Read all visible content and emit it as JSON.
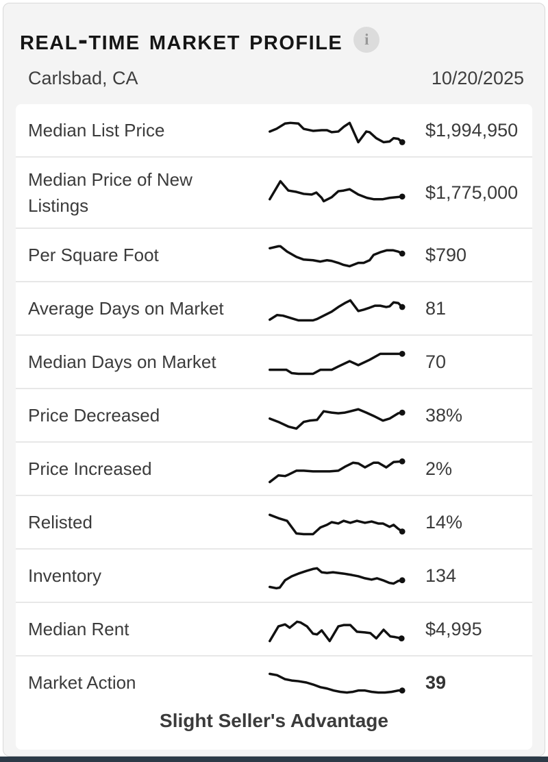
{
  "header": {
    "title": "Real-Time Market Profile",
    "info_icon": "i",
    "location": "Carlsbad, CA",
    "date": "10/20/2025"
  },
  "theme": {
    "sparkline_color": "#111111",
    "card_background": "#f4f4f4",
    "row_background": "#ffffff",
    "text_color": "#3b3b3b",
    "bottom_strip_color": "#2c3a47",
    "info_circle_color": "#dcdcdc"
  },
  "rows": [
    {
      "label": "Median List Price",
      "value": "$1,994,950",
      "bold": false,
      "spark": [
        [
          7,
          27
        ],
        [
          17,
          23
        ],
        [
          30,
          15
        ],
        [
          38,
          14
        ],
        [
          50,
          15
        ],
        [
          58,
          23
        ],
        [
          72,
          26
        ],
        [
          85,
          25
        ],
        [
          93,
          25
        ],
        [
          100,
          28
        ],
        [
          110,
          27
        ],
        [
          118,
          20
        ],
        [
          127,
          14
        ],
        [
          140,
          43
        ],
        [
          152,
          27
        ],
        [
          157,
          28
        ],
        [
          167,
          37
        ],
        [
          178,
          43
        ],
        [
          187,
          42
        ],
        [
          193,
          37
        ],
        [
          200,
          38
        ],
        [
          206,
          43
        ]
      ]
    },
    {
      "label": "Median Price of New Listings",
      "value": "$1,775,000",
      "bold": false,
      "spark": [
        [
          7,
          35
        ],
        [
          23,
          8
        ],
        [
          35,
          22
        ],
        [
          47,
          24
        ],
        [
          58,
          27
        ],
        [
          70,
          28
        ],
        [
          77,
          25
        ],
        [
          85,
          33
        ],
        [
          88,
          38
        ],
        [
          100,
          32
        ],
        [
          110,
          23
        ],
        [
          118,
          22
        ],
        [
          127,
          20
        ],
        [
          140,
          28
        ],
        [
          153,
          33
        ],
        [
          163,
          35
        ],
        [
          177,
          35
        ],
        [
          187,
          33
        ],
        [
          197,
          32
        ],
        [
          206,
          31
        ]
      ]
    },
    {
      "label": "Per Square Foot",
      "value": "$790",
      "bold": false,
      "spark": [
        [
          7,
          15
        ],
        [
          20,
          12
        ],
        [
          23,
          12
        ],
        [
          33,
          20
        ],
        [
          47,
          28
        ],
        [
          58,
          32
        ],
        [
          72,
          33
        ],
        [
          83,
          35
        ],
        [
          93,
          33
        ],
        [
          100,
          34
        ],
        [
          110,
          37
        ],
        [
          118,
          40
        ],
        [
          127,
          42
        ],
        [
          140,
          37
        ],
        [
          148,
          37
        ],
        [
          157,
          33
        ],
        [
          163,
          25
        ],
        [
          173,
          21
        ],
        [
          183,
          18
        ],
        [
          192,
          18
        ],
        [
          200,
          20
        ],
        [
          206,
          23
        ]
      ]
    },
    {
      "label": "Average Days on Market",
      "value": "81",
      "bold": false,
      "spark": [
        [
          7,
          42
        ],
        [
          18,
          35
        ],
        [
          27,
          36
        ],
        [
          40,
          40
        ],
        [
          50,
          43
        ],
        [
          62,
          43
        ],
        [
          72,
          43
        ],
        [
          78,
          41
        ],
        [
          90,
          35
        ],
        [
          100,
          30
        ],
        [
          110,
          23
        ],
        [
          120,
          17
        ],
        [
          128,
          13
        ],
        [
          140,
          29
        ],
        [
          148,
          27
        ],
        [
          157,
          24
        ],
        [
          165,
          21
        ],
        [
          173,
          21
        ],
        [
          182,
          23
        ],
        [
          187,
          22
        ],
        [
          193,
          16
        ],
        [
          200,
          17
        ],
        [
          206,
          23
        ]
      ]
    },
    {
      "label": "Median Days on Market",
      "value": "70",
      "bold": false,
      "spark": [
        [
          7,
          37
        ],
        [
          32,
          37
        ],
        [
          40,
          42
        ],
        [
          50,
          43
        ],
        [
          72,
          43
        ],
        [
          83,
          37
        ],
        [
          100,
          37
        ],
        [
          110,
          32
        ],
        [
          127,
          24
        ],
        [
          140,
          30
        ],
        [
          157,
          22
        ],
        [
          173,
          13
        ],
        [
          187,
          13
        ],
        [
          206,
          13
        ]
      ]
    },
    {
      "label": "Price Decreased",
      "value": "38%",
      "bold": false,
      "spark": [
        [
          7,
          30
        ],
        [
          20,
          35
        ],
        [
          35,
          42
        ],
        [
          47,
          45
        ],
        [
          58,
          35
        ],
        [
          67,
          33
        ],
        [
          78,
          32
        ],
        [
          88,
          19
        ],
        [
          100,
          21
        ],
        [
          110,
          22
        ],
        [
          120,
          21
        ],
        [
          140,
          16
        ],
        [
          152,
          21
        ],
        [
          163,
          26
        ],
        [
          177,
          33
        ],
        [
          187,
          30
        ],
        [
          200,
          22
        ],
        [
          206,
          21
        ]
      ]
    },
    {
      "label": "Price Increased",
      "value": "2%",
      "bold": false,
      "spark": [
        [
          7,
          45
        ],
        [
          20,
          35
        ],
        [
          30,
          36
        ],
        [
          35,
          34
        ],
        [
          47,
          28
        ],
        [
          58,
          28
        ],
        [
          72,
          29
        ],
        [
          83,
          29
        ],
        [
          97,
          29
        ],
        [
          110,
          28
        ],
        [
          120,
          22
        ],
        [
          132,
          16
        ],
        [
          140,
          17
        ],
        [
          150,
          23
        ],
        [
          163,
          16
        ],
        [
          170,
          16
        ],
        [
          182,
          23
        ],
        [
          193,
          15
        ],
        [
          206,
          14
        ]
      ]
    },
    {
      "label": "Relisted",
      "value": "14%",
      "bold": false,
      "spark": [
        [
          7,
          14
        ],
        [
          20,
          19
        ],
        [
          33,
          23
        ],
        [
          47,
          42
        ],
        [
          58,
          43
        ],
        [
          72,
          43
        ],
        [
          83,
          33
        ],
        [
          93,
          29
        ],
        [
          100,
          25
        ],
        [
          110,
          27
        ],
        [
          118,
          23
        ],
        [
          128,
          26
        ],
        [
          138,
          23
        ],
        [
          150,
          26
        ],
        [
          160,
          24
        ],
        [
          170,
          27
        ],
        [
          177,
          27
        ],
        [
          187,
          32
        ],
        [
          193,
          29
        ],
        [
          200,
          35
        ],
        [
          206,
          39
        ]
      ]
    },
    {
      "label": "Inventory",
      "value": "134",
      "bold": false,
      "spark": [
        [
          7,
          42
        ],
        [
          17,
          44
        ],
        [
          22,
          43
        ],
        [
          30,
          32
        ],
        [
          40,
          26
        ],
        [
          50,
          22
        ],
        [
          62,
          18
        ],
        [
          72,
          15
        ],
        [
          78,
          14
        ],
        [
          85,
          20
        ],
        [
          93,
          21
        ],
        [
          102,
          20
        ],
        [
          110,
          21
        ],
        [
          118,
          22
        ],
        [
          130,
          24
        ],
        [
          140,
          26
        ],
        [
          150,
          29
        ],
        [
          160,
          31
        ],
        [
          168,
          29
        ],
        [
          177,
          32
        ],
        [
          187,
          36
        ],
        [
          193,
          37
        ],
        [
          200,
          33
        ],
        [
          206,
          32
        ]
      ]
    },
    {
      "label": "Median Rent",
      "value": "$4,995",
      "bold": false,
      "spark": [
        [
          7,
          43
        ],
        [
          20,
          21
        ],
        [
          30,
          18
        ],
        [
          37,
          23
        ],
        [
          48,
          14
        ],
        [
          53,
          15
        ],
        [
          63,
          21
        ],
        [
          72,
          32
        ],
        [
          78,
          33
        ],
        [
          85,
          27
        ],
        [
          97,
          43
        ],
        [
          110,
          21
        ],
        [
          118,
          19
        ],
        [
          128,
          19
        ],
        [
          138,
          29
        ],
        [
          150,
          30
        ],
        [
          158,
          31
        ],
        [
          167,
          39
        ],
        [
          178,
          26
        ],
        [
          188,
          36
        ],
        [
          195,
          37
        ],
        [
          205,
          39
        ]
      ]
    },
    {
      "label": "Market Action",
      "value": "39",
      "bold": true,
      "footer": "Slight Seller's Advantage",
      "spark": [
        [
          7,
          12
        ],
        [
          18,
          14
        ],
        [
          30,
          20
        ],
        [
          40,
          22
        ],
        [
          50,
          23
        ],
        [
          62,
          25
        ],
        [
          72,
          28
        ],
        [
          83,
          32
        ],
        [
          93,
          34
        ],
        [
          103,
          37
        ],
        [
          113,
          39
        ],
        [
          123,
          40
        ],
        [
          132,
          39
        ],
        [
          140,
          37
        ],
        [
          150,
          37
        ],
        [
          160,
          39
        ],
        [
          170,
          40
        ],
        [
          180,
          40
        ],
        [
          190,
          39
        ],
        [
          200,
          37
        ],
        [
          206,
          37
        ]
      ]
    }
  ]
}
